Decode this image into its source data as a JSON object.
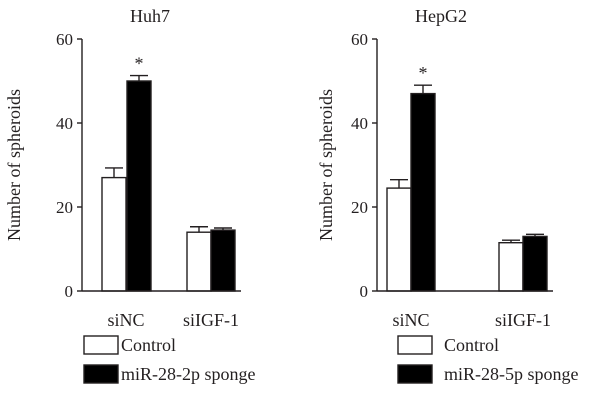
{
  "chart_data": [
    {
      "type": "bar",
      "title": "Huh7",
      "xlabel": "",
      "ylabel": "Number of spheroids",
      "ylim": [
        0,
        60
      ],
      "yticks": [
        0,
        20,
        40,
        60
      ],
      "categories": [
        "siNC",
        "siIGF-1"
      ],
      "series": [
        {
          "name": "Control",
          "values": [
            27,
            14
          ],
          "errors": [
            2.3,
            1.3
          ],
          "color": "#ffffff"
        },
        {
          "name": "miR-28-2p sponge",
          "values": [
            50,
            14.5
          ],
          "errors": [
            1.3,
            0.5
          ],
          "color": "#000000"
        }
      ],
      "annotations": [
        {
          "category": "siNC",
          "series": "miR-28-2p sponge",
          "text": "*"
        }
      ],
      "legend": "bottom",
      "grid": false
    },
    {
      "type": "bar",
      "title": "HepG2",
      "xlabel": "",
      "ylabel": "Number of spheroids",
      "ylim": [
        0,
        60
      ],
      "yticks": [
        0,
        20,
        40,
        60
      ],
      "categories": [
        "siNC",
        "siIGF-1"
      ],
      "series": [
        {
          "name": "Control",
          "values": [
            24.5,
            11.5
          ],
          "errors": [
            2.0,
            0.6
          ],
          "color": "#ffffff"
        },
        {
          "name": "miR-28-5p sponge",
          "values": [
            47,
            13
          ],
          "errors": [
            2.0,
            0.5
          ],
          "color": "#000000"
        }
      ],
      "annotations": [
        {
          "category": "siNC",
          "series": "miR-28-5p sponge",
          "text": "*"
        }
      ],
      "legend": "bottom",
      "grid": false
    }
  ]
}
